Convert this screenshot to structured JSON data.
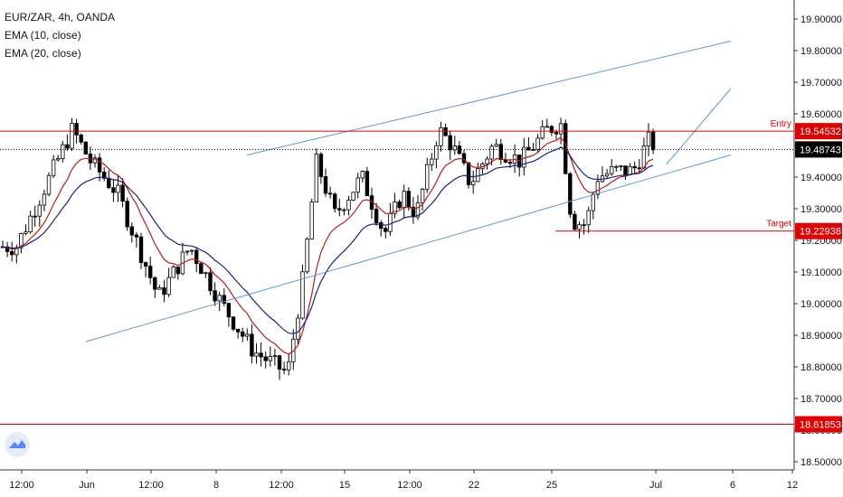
{
  "legend": {
    "symbol": "EUR/ZAR, 4h, OANDA",
    "ema10": "EMA (10, close)",
    "ema20": "EMA (20, close)"
  },
  "colors": {
    "up": "#ffffff",
    "down": "#000000",
    "ema10": "#b71c1c",
    "ema20": "#1a237e",
    "channel": "#5b9bd5",
    "level": "#e00000",
    "current": "#000000"
  },
  "chart_data": {
    "type": "candlestick",
    "y_axis": {
      "range": [
        18.5,
        19.92
      ],
      "ticks": [
        "19.90000",
        "19.80000",
        "19.70000",
        "19.60000",
        "19.50000",
        "19.40000",
        "19.30000",
        "19.20000",
        "19.10000",
        "19.00000",
        "18.90000",
        "18.80000",
        "18.70000",
        "18.60000",
        "18.50000"
      ]
    },
    "x_axis": {
      "ticks": [
        "12:00",
        "Jun",
        "12:00",
        "8",
        "12:00",
        "15",
        "12:00",
        "22",
        "25",
        "Jul",
        "6",
        "12"
      ]
    },
    "levels": [
      {
        "label": "Entry",
        "value": 19.54532,
        "value_text": "19.54532",
        "style": "red"
      },
      {
        "label": "",
        "value": 19.48743,
        "value_text": "19.48743",
        "style": "current"
      },
      {
        "label": "Target",
        "value": 19.22938,
        "value_text": "19.22938",
        "style": "red"
      },
      {
        "label": "",
        "value": 18.61853,
        "value_text": "18.61853",
        "style": "red"
      }
    ],
    "channel_lines": [
      {
        "from": [
          0,
          18.88
        ],
        "to": [
          1,
          19.47
        ]
      },
      {
        "from": [
          0.25,
          19.47
        ],
        "to": [
          1,
          19.83
        ]
      },
      {
        "from": [
          0.9,
          19.44
        ],
        "to": [
          1,
          19.68
        ]
      }
    ],
    "anchors": [
      [
        18,
        19.18
      ],
      [
        80,
        19.55
      ],
      [
        100,
        19.45
      ],
      [
        130,
        19.35
      ],
      [
        175,
        19.02
      ],
      [
        210,
        19.18
      ],
      [
        245,
        19.0
      ],
      [
        280,
        18.85
      ],
      [
        318,
        18.78
      ],
      [
        335,
        19.08
      ],
      [
        350,
        19.45
      ],
      [
        370,
        19.28
      ],
      [
        400,
        19.4
      ],
      [
        425,
        19.22
      ],
      [
        445,
        19.35
      ],
      [
        460,
        19.28
      ],
      [
        485,
        19.55
      ],
      [
        500,
        19.5
      ],
      [
        520,
        19.38
      ],
      [
        545,
        19.5
      ],
      [
        575,
        19.45
      ],
      [
        605,
        19.55
      ],
      [
        620,
        19.57
      ],
      [
        632,
        19.26
      ],
      [
        648,
        19.25
      ],
      [
        660,
        19.4
      ],
      [
        680,
        19.42
      ],
      [
        700,
        19.42
      ],
      [
        718,
        19.52
      ],
      [
        725,
        19.49
      ]
    ]
  }
}
